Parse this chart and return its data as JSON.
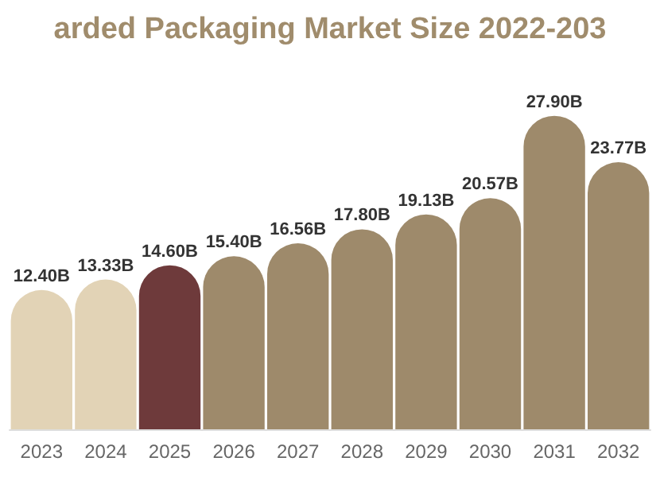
{
  "chart_data": {
    "type": "bar",
    "title": "arded Packaging Market Size 2022-203",
    "categories": [
      "2023",
      "2024",
      "2025",
      "2026",
      "2027",
      "2028",
      "2029",
      "2030",
      "2031",
      "2032"
    ],
    "values": [
      12.4,
      13.33,
      14.6,
      15.4,
      16.56,
      17.8,
      19.13,
      20.57,
      27.9,
      23.77
    ],
    "value_labels": [
      "12.40B",
      "13.33B",
      "14.60B",
      "15.40B",
      "16.56B",
      "17.80B",
      "19.13B",
      "20.57B",
      "27.90B",
      "23.77B"
    ],
    "colors": [
      "#e2d3b6",
      "#e2d3b6",
      "#6e3a3b",
      "#9e8a6b",
      "#9e8a6b",
      "#9e8a6b",
      "#9e8a6b",
      "#9e8a6b",
      "#9e8a6b",
      "#9e8a6b"
    ],
    "data_labels": true
  }
}
